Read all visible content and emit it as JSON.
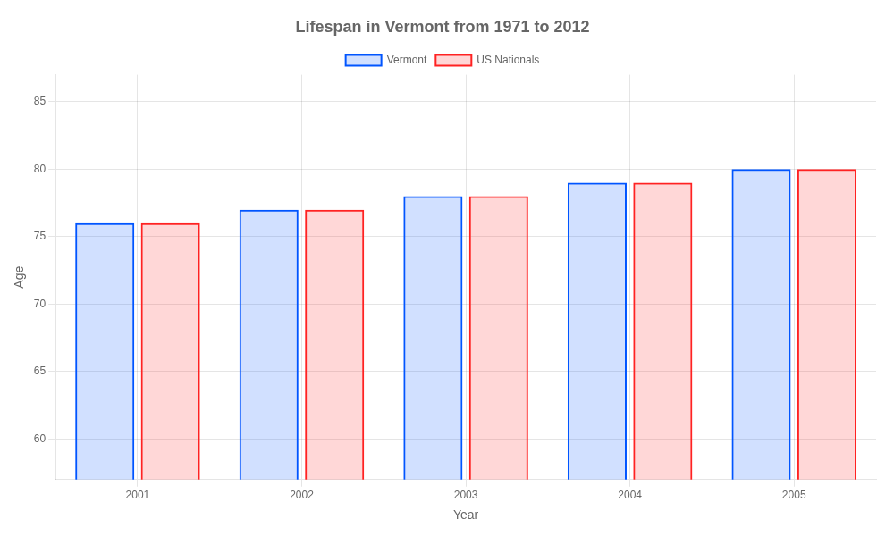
{
  "chart_data": {
    "type": "bar",
    "title": "Lifespan in Vermont from 1971 to 2012",
    "categories": [
      "2001",
      "2002",
      "2003",
      "2004",
      "2005"
    ],
    "series": [
      {
        "name": "Vermont",
        "color": "#0055ff",
        "values": [
          76,
          77,
          78,
          79,
          80
        ]
      },
      {
        "name": "US Nationals",
        "color": "#ff2222",
        "values": [
          76,
          77,
          78,
          79,
          80
        ]
      }
    ],
    "x_label": "Year",
    "y_label": "Age",
    "ylim": [
      57,
      87
    ],
    "yticks": [
      60,
      65,
      70,
      75,
      80,
      85
    ],
    "grid": true,
    "legend": "top"
  }
}
